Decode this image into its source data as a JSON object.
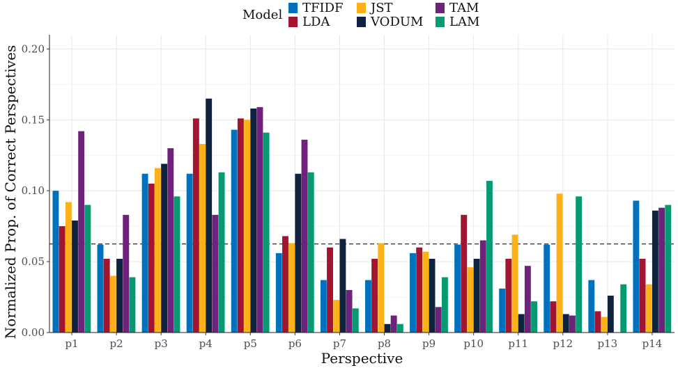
{
  "chart_data": {
    "type": "bar",
    "xlabel": "Perspective",
    "ylabel": "Normalized Prop. of Correct Perspectives",
    "ylim": [
      0,
      0.21
    ],
    "yticks": [
      "0.00",
      "0.05",
      "0.10",
      "0.15",
      "0.20"
    ],
    "ytick_values": [
      0,
      0.05,
      0.1,
      0.15,
      0.2
    ],
    "reference_line": 0.0625,
    "legend": {
      "title": "Model",
      "placement": "top"
    },
    "categories": [
      "p1",
      "p2",
      "p3",
      "p4",
      "p5",
      "p6",
      "p7",
      "p8",
      "p9",
      "p10",
      "p11",
      "p12",
      "p13",
      "p14"
    ],
    "series": [
      {
        "name": "TFIDF",
        "color": "#0072BD",
        "values": [
          0.1,
          0.062,
          0.112,
          0.112,
          0.143,
          0.056,
          0.037,
          0.037,
          0.056,
          0.062,
          0.031,
          0.062,
          0.037,
          0.093
        ]
      },
      {
        "name": "LDA",
        "color": "#A2142F",
        "values": [
          0.075,
          0.052,
          0.105,
          0.151,
          0.151,
          0.068,
          0.06,
          0.052,
          0.06,
          0.083,
          0.052,
          0.022,
          0.015,
          0.052
        ]
      },
      {
        "name": "JST",
        "color": "#FBB117",
        "values": [
          0.092,
          0.04,
          0.116,
          0.133,
          0.15,
          0.063,
          0.023,
          0.063,
          0.057,
          0.046,
          0.069,
          0.098,
          0.011,
          0.034
        ]
      },
      {
        "name": "VODUM",
        "color": "#0F2340",
        "values": [
          0.079,
          0.052,
          0.119,
          0.165,
          0.158,
          0.112,
          0.066,
          0.006,
          0.052,
          0.052,
          0.013,
          0.013,
          0.026,
          0.086
        ]
      },
      {
        "name": "TAM",
        "color": "#6E2279",
        "values": [
          0.142,
          0.083,
          0.13,
          0.083,
          0.159,
          0.136,
          0.03,
          0.012,
          0.018,
          0.065,
          0.047,
          0.012,
          0.0,
          0.088
        ]
      },
      {
        "name": "LAM",
        "color": "#069A73",
        "values": [
          0.09,
          0.039,
          0.096,
          0.113,
          0.141,
          0.113,
          0.017,
          0.006,
          0.039,
          0.107,
          0.022,
          0.096,
          0.034,
          0.09
        ]
      }
    ]
  }
}
